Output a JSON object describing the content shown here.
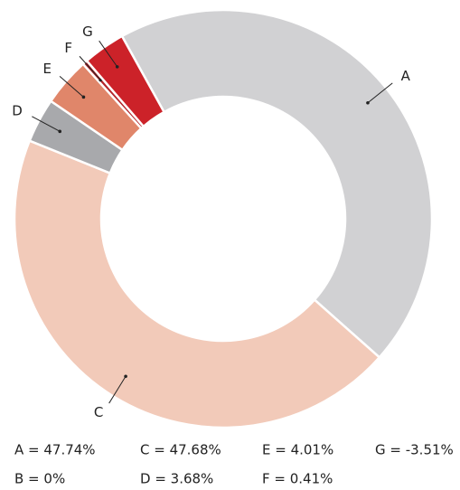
{
  "chart_data": {
    "type": "donut",
    "categories": [
      "A",
      "B",
      "C",
      "D",
      "E",
      "F",
      "G"
    ],
    "values": [
      47.74,
      0,
      47.68,
      3.68,
      4.01,
      0.41,
      -3.51
    ],
    "value_labels": [
      "A = 47.74%",
      "B = 0%",
      "C = 47.68%",
      "D = 3.68%",
      "E = 4.01%",
      "F = 0.41%",
      "G = -3.51%"
    ],
    "colors": [
      "#d1d1d3",
      "#8fb3d9",
      "#f2cab9",
      "#a8a9ac",
      "#e0866a",
      "#b3262b",
      "#cc2229"
    ]
  }
}
